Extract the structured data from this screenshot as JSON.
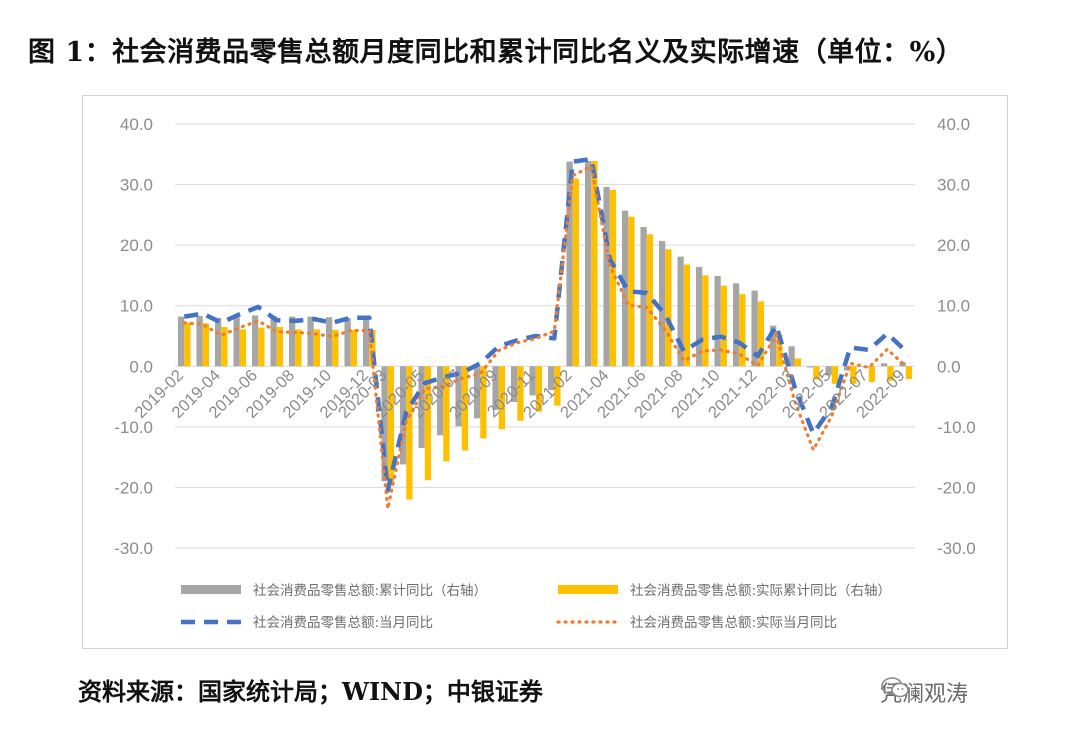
{
  "figure": {
    "title": "图 1：社会消费品零售总额月度同比和累计同比名义及实际增速（单位：%）",
    "source": "资料来源：国家统计局；WIND；中银证券",
    "watermark": "凭澜观涛",
    "watermark_icon": "wechat-icon"
  },
  "colors": {
    "cum_nominal": "#a6a6a6",
    "cum_real": "#ffc000",
    "mon_nominal": "#4472c4",
    "mon_real": "#ed7d31",
    "grid": "#d9d9d9",
    "axis_text": "#8c8c8c"
  },
  "chart_data": {
    "type": "bar",
    "title": "",
    "xlabel": "",
    "ylabel": "",
    "ylim": [
      -30,
      40
    ],
    "y2lim": [
      -30,
      40
    ],
    "yticks": [
      "40.0",
      "30.0",
      "20.0",
      "10.0",
      "0.0",
      "-10.0",
      "-20.0",
      "-30.0"
    ],
    "grid": true,
    "legend_position": "bottom",
    "categories": [
      "2019-02",
      "2019-03",
      "2019-04",
      "2019-05",
      "2019-06",
      "2019-07",
      "2019-08",
      "2019-09",
      "2019-10",
      "2019-11",
      "2019-12",
      "2020-03",
      "2020-04",
      "2020-05",
      "2020-06",
      "2020-07",
      "2020-08",
      "2020-09",
      "2020-10",
      "2020-11",
      "2020-12",
      "2021-02",
      "2021-03",
      "2021-04",
      "2021-05",
      "2021-06",
      "2021-07",
      "2021-08",
      "2021-09",
      "2021-10",
      "2021-11",
      "2021-12",
      "2022-02",
      "2022-03",
      "2022-04",
      "2022-05",
      "2022-06",
      "2022-07",
      "2022-08",
      "2022-09"
    ],
    "tick_labels": [
      "2019-02",
      "2019-04",
      "2019-06",
      "2019-08",
      "2019-10",
      "2019-12",
      "2020-03",
      "2020-05",
      "2020-07",
      "2020-09",
      "2020-11",
      "2021-02",
      "2021-04",
      "2021-06",
      "2021-08",
      "2021-10",
      "2021-12",
      "2022-03",
      "2022-05",
      "2022-07",
      "2022-09"
    ],
    "series": [
      {
        "name": "社会消费品零售总额:累计同比（右轴）",
        "type": "bar",
        "axis": "right",
        "values": [
          8.2,
          8.3,
          8.0,
          8.1,
          8.4,
          8.3,
          8.2,
          8.2,
          8.1,
          8.0,
          8.0,
          -19.0,
          -16.2,
          -13.5,
          -11.4,
          -9.9,
          -8.6,
          -7.2,
          -5.9,
          -4.8,
          -3.9,
          33.8,
          33.9,
          29.6,
          25.7,
          23.0,
          20.7,
          18.1,
          16.4,
          14.9,
          13.7,
          12.5,
          6.7,
          3.3,
          -0.2,
          -1.5,
          -0.7,
          -0.2,
          0.5,
          0.7
        ]
      },
      {
        "name": "社会消费品零售总额:实际累计同比（右轴）",
        "type": "bar",
        "axis": "right",
        "values": [
          7.2,
          7.1,
          6.5,
          6.1,
          6.4,
          6.5,
          6.1,
          6.1,
          6.0,
          6.0,
          6.0,
          -19.2,
          -22.0,
          -18.8,
          -15.7,
          -13.9,
          -11.9,
          -10.4,
          -9.0,
          -7.5,
          -6.5,
          31.0,
          33.9,
          29.1,
          24.7,
          21.8,
          19.3,
          16.8,
          15.0,
          13.3,
          11.9,
          10.7,
          5.2,
          1.3,
          -2.2,
          -2.9,
          -2.9,
          -2.6,
          -2.4,
          -2.1
        ]
      },
      {
        "name": "社会消费品零售总额:当月同比",
        "type": "line",
        "style": "dashed",
        "axis": "left",
        "values": [
          8.2,
          8.7,
          7.2,
          8.6,
          9.8,
          7.6,
          7.5,
          7.8,
          7.2,
          8.0,
          8.0,
          -20.5,
          -7.5,
          -2.8,
          -1.8,
          -1.1,
          0.5,
          3.3,
          4.3,
          5.0,
          4.6,
          33.8,
          34.2,
          17.7,
          12.4,
          12.1,
          8.5,
          2.5,
          4.4,
          4.9,
          3.9,
          1.7,
          6.7,
          -3.5,
          -11.1,
          -6.7,
          3.1,
          2.7,
          5.4,
          2.5
        ]
      },
      {
        "name": "社会消费品零售总额:实际当月同比",
        "type": "line",
        "style": "dotted",
        "axis": "left",
        "values": [
          7.2,
          6.9,
          5.1,
          6.4,
          7.5,
          5.7,
          5.6,
          5.4,
          4.9,
          5.9,
          5.9,
          -23.5,
          -9.1,
          -3.7,
          -3.3,
          -2.0,
          -1.2,
          2.6,
          3.9,
          4.6,
          5.8,
          31.5,
          33.0,
          16.6,
          10.1,
          9.7,
          6.0,
          0.9,
          2.5,
          2.7,
          2.0,
          0.1,
          5.2,
          -5.8,
          -13.8,
          -8.2,
          0.5,
          -0.2,
          2.8,
          0.0
        ]
      }
    ]
  }
}
